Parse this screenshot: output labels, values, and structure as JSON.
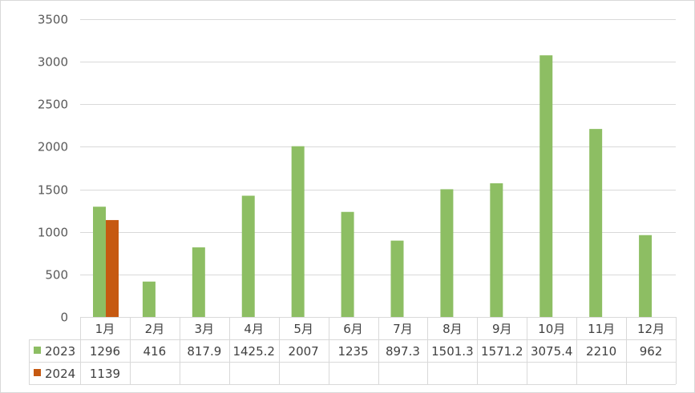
{
  "chart_data": {
    "type": "bar",
    "categories": [
      "1月",
      "2月",
      "3月",
      "4月",
      "5月",
      "6月",
      "7月",
      "8月",
      "9月",
      "10月",
      "11月",
      "12月"
    ],
    "series": [
      {
        "name": "2023",
        "color": "#8dbe63",
        "values": [
          1296,
          416,
          817.9,
          1425.2,
          2007,
          1235,
          897.3,
          1501.3,
          1571.2,
          3075.4,
          2210,
          962
        ],
        "labels": [
          "1296",
          "416",
          "817.9",
          "1425.2",
          "2007",
          "1235",
          "897.3",
          "1501.3",
          "1571.2",
          "3075.4",
          "2210",
          "962"
        ]
      },
      {
        "name": "2024",
        "color": "#c65911",
        "values": [
          1139,
          null,
          null,
          null,
          null,
          null,
          null,
          null,
          null,
          null,
          null,
          null
        ],
        "labels": [
          "1139",
          "",
          "",
          "",
          "",
          "",
          "",
          "",
          "",
          "",
          "",
          ""
        ]
      }
    ],
    "ylim": [
      0,
      3500
    ],
    "yticks": [
      "0",
      "500",
      "1000",
      "1500",
      "2000",
      "2500",
      "3000",
      "3500"
    ],
    "grid": true,
    "legend": "data-table"
  }
}
